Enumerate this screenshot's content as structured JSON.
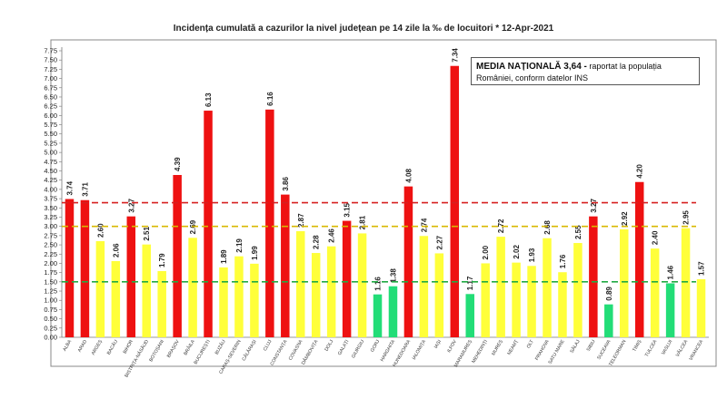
{
  "title": "Incidența cumulată a cazurilor la nivel județean pe 14 zile la ‰ de locuitori *   12-Apr-2021",
  "note": {
    "headline": "MEDIA NAȚIONALĂ  3,64 -",
    "text": " raportat la populația României, conform datelor INS"
  },
  "colors": {
    "red": "#ee1111",
    "yellow": "#ffff3a",
    "green": "#22dd77",
    "red_line": "#d62020",
    "yellow_line": "#d8b800",
    "green_line": "#22aa44"
  },
  "chart_data": {
    "type": "bar",
    "ylim": [
      0,
      7.75
    ],
    "yticks": [
      "0.00",
      "0.25",
      "0.50",
      "0.75",
      "1.00",
      "1.25",
      "1.50",
      "1.75",
      "2.00",
      "2.25",
      "2.50",
      "2.75",
      "3.00",
      "3.25",
      "3.50",
      "3.75",
      "4.00",
      "4.25",
      "4.50",
      "4.75",
      "5.00",
      "5.25",
      "5.50",
      "5.75",
      "6.00",
      "6.25",
      "6.50",
      "6.75",
      "7.00",
      "7.25",
      "7.50",
      "7.75"
    ],
    "reference_lines": [
      {
        "value": 3.64,
        "color": "red"
      },
      {
        "value": 3.0,
        "color": "yellow"
      },
      {
        "value": 1.5,
        "color": "green"
      }
    ],
    "categories": [
      "ALBA",
      "ARAD",
      "ARGEȘ",
      "BACĂU",
      "BIHOR",
      "BISTRIȚA-NĂSĂUD",
      "BOTOȘANI",
      "BRAȘOV",
      "BRĂILA",
      "BUCUREȘTI",
      "BUZĂU",
      "CARAȘ-SEVERIN",
      "CĂLĂRAȘI",
      "CLUJ",
      "CONSTANȚA",
      "COVASNA",
      "DÂMBOVIȚA",
      "DOLJ",
      "GALAȚI",
      "GIURGIU",
      "GORJ",
      "HARGHITA",
      "HUNEDOARA",
      "IALOMIȚA",
      "IAȘI",
      "ILFOV",
      "MARAMUREȘ",
      "MEHEDINȚI",
      "MUREȘ",
      "NEAMȚ",
      "OLT",
      "PRAHOVA",
      "SATU MARE",
      "SĂLAJ",
      "SIBIU",
      "SUCEAVA",
      "TELEORMAN",
      "TIMIȘ",
      "TULCEA",
      "VASLUI",
      "VÂLCEA",
      "VRANCEA"
    ],
    "values": [
      3.74,
      3.71,
      2.6,
      2.06,
      3.27,
      2.51,
      1.79,
      4.39,
      2.69,
      6.13,
      1.89,
      2.19,
      1.99,
      6.16,
      3.86,
      2.87,
      2.28,
      2.46,
      3.15,
      2.81,
      1.16,
      1.38,
      4.08,
      2.74,
      2.27,
      7.34,
      1.17,
      2.0,
      2.72,
      2.02,
      1.93,
      2.68,
      1.76,
      2.55,
      3.27,
      0.89,
      2.92,
      4.2,
      2.4,
      1.46,
      2.95,
      1.57
    ],
    "labels": [
      "3.74",
      "3.71",
      "2.60",
      "2.06",
      "3.27",
      "2.51",
      "1.79",
      "4.39",
      "2.69",
      "6.13",
      "1.89",
      "2.19",
      "1.99",
      "6.16",
      "3.86",
      "2.87",
      "2.28",
      "2.46",
      "3.15",
      "2.81",
      "1.16",
      "1.38",
      "4.08",
      "2.74",
      "2.27",
      "7.34",
      "1.17",
      "2.00",
      "2.72",
      "2.02",
      "1.93",
      "2.68",
      "1.76",
      "2.55",
      "3.27",
      "0.89",
      "2.92",
      "4.20",
      "2.40",
      "1.46",
      "2.95",
      "1.57"
    ],
    "bar_colors": [
      "red",
      "red",
      "yellow",
      "yellow",
      "red",
      "yellow",
      "yellow",
      "red",
      "yellow",
      "red",
      "yellow",
      "yellow",
      "yellow",
      "red",
      "red",
      "yellow",
      "yellow",
      "yellow",
      "red",
      "yellow",
      "green",
      "green",
      "red",
      "yellow",
      "yellow",
      "red",
      "green",
      "yellow",
      "yellow",
      "yellow",
      "yellow",
      "yellow",
      "yellow",
      "yellow",
      "red",
      "green",
      "yellow",
      "red",
      "yellow",
      "green",
      "yellow",
      "yellow"
    ]
  }
}
